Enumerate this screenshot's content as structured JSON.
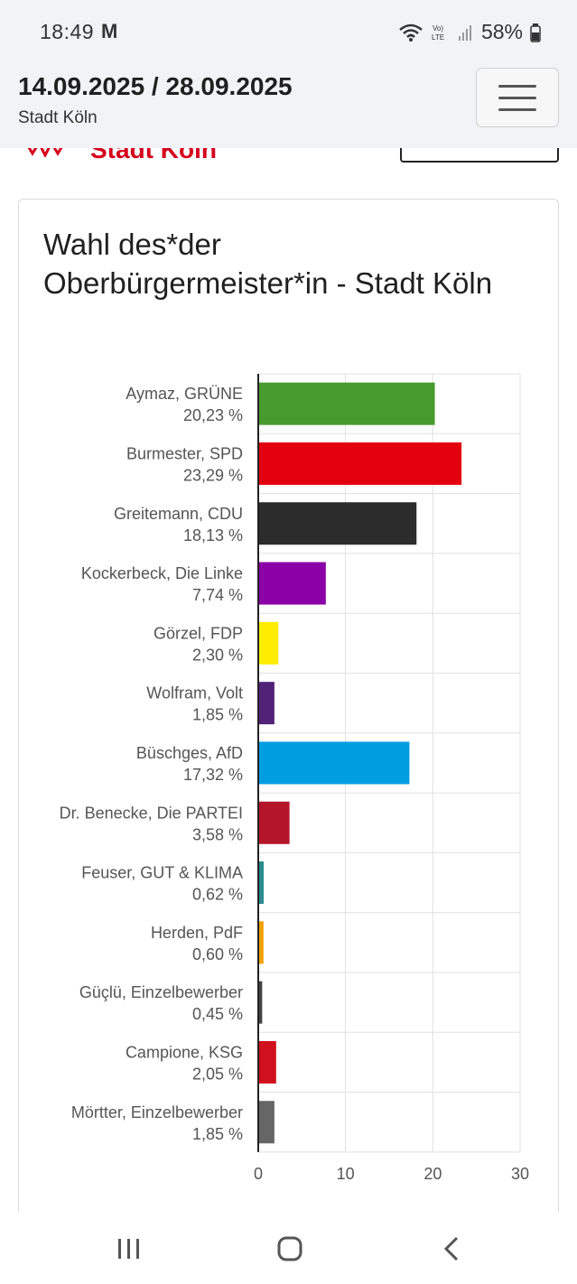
{
  "status_bar": {
    "time": "18:49",
    "notif": "M",
    "battery": "58%"
  },
  "header": {
    "dates": "14.09.2025 / 28.09.2025",
    "city": "Stadt Köln"
  },
  "logo_text": "Stadt Köln",
  "card": {
    "title": "Wahl des*der Oberbürgermeister*in - Stadt Köln"
  },
  "chart_data": {
    "type": "bar",
    "orientation": "horizontal",
    "xlim": [
      0,
      30
    ],
    "xticks": [
      0,
      10,
      20,
      30
    ],
    "grid": true,
    "categories": [
      {
        "name": "Aymaz, GRÜNE",
        "label": "20,23 %",
        "value": 20.23,
        "color": "#469a2e"
      },
      {
        "name": "Burmester, SPD",
        "label": "23,29 %",
        "value": 23.29,
        "color": "#e3000f"
      },
      {
        "name": "Greitemann, CDU",
        "label": "18,13 %",
        "value": 18.13,
        "color": "#2c2c2c"
      },
      {
        "name": "Kockerbeck, Die Linke",
        "label": "7,74 %",
        "value": 7.74,
        "color": "#8b00a6"
      },
      {
        "name": "Görzel, FDP",
        "label": "2,30 %",
        "value": 2.3,
        "color": "#ffed00"
      },
      {
        "name": "Wolfram, Volt",
        "label": "1,85 %",
        "value": 1.85,
        "color": "#502379"
      },
      {
        "name": "Büschges, AfD",
        "label": "17,32 %",
        "value": 17.32,
        "color": "#009ee0"
      },
      {
        "name": "Dr. Benecke, Die PARTEI",
        "label": "3,58 %",
        "value": 3.58,
        "color": "#b5152b"
      },
      {
        "name": "Feuser, GUT & KLIMA",
        "label": "0,62 %",
        "value": 0.62,
        "color": "#2a8c8c"
      },
      {
        "name": "Herden, PdF",
        "label": "0,60 %",
        "value": 0.6,
        "color": "#f0a000"
      },
      {
        "name": "Güçlü, Einzelbewerber",
        "label": "0,45 %",
        "value": 0.45,
        "color": "#444444"
      },
      {
        "name": "Campione, KSG",
        "label": "2,05 %",
        "value": 2.05,
        "color": "#d0101c"
      },
      {
        "name": "Mörtter, Einzelbewerber",
        "label": "1,85 %",
        "value": 1.85,
        "color": "#666666"
      }
    ]
  }
}
